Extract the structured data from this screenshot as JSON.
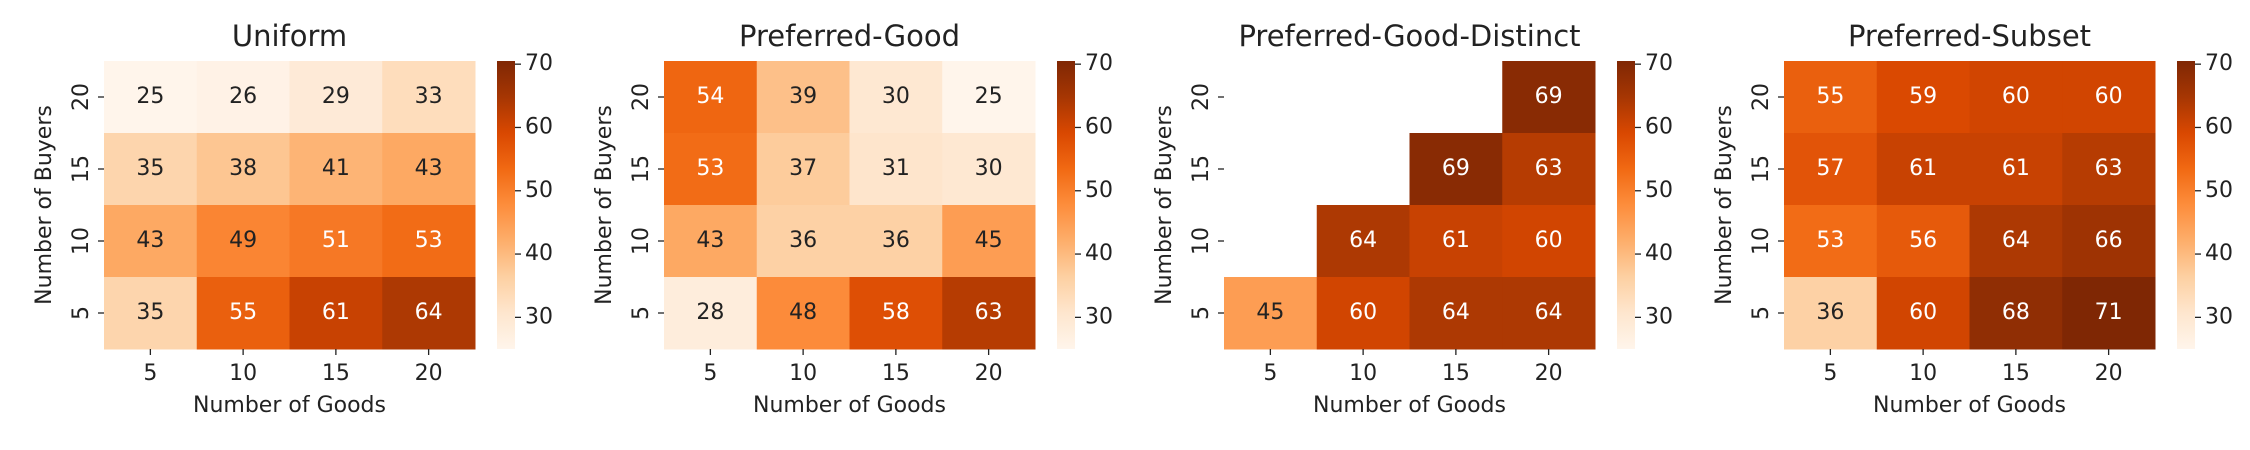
{
  "chart_data": [
    {
      "type": "heatmap",
      "title": "Uniform",
      "xlabel": "Number of Goods",
      "ylabel": "Number of Buyers",
      "x": [
        "5",
        "10",
        "15",
        "20"
      ],
      "y": [
        "20",
        "15",
        "10",
        "5"
      ],
      "values": [
        [
          25,
          26,
          29,
          33
        ],
        [
          35,
          38,
          41,
          43
        ],
        [
          43,
          49,
          51,
          53
        ],
        [
          35,
          55,
          61,
          64
        ]
      ],
      "clim": [
        25,
        70.5
      ],
      "cticks": [
        30,
        40,
        50,
        60,
        70
      ],
      "colormap": [
        "#fff5eb",
        "#fee6ce",
        "#fdd0a2",
        "#fdae6b",
        "#fd8d3c",
        "#f16913",
        "#d94801",
        "#a63603",
        "#7f2704"
      ]
    },
    {
      "type": "heatmap",
      "title": "Preferred-Good",
      "xlabel": "Number of Goods",
      "ylabel": "Number of Buyers",
      "x": [
        "5",
        "10",
        "15",
        "20"
      ],
      "y": [
        "20",
        "15",
        "10",
        "5"
      ],
      "values": [
        [
          54,
          39,
          30,
          25
        ],
        [
          53,
          37,
          31,
          30
        ],
        [
          43,
          36,
          36,
          45
        ],
        [
          28,
          48,
          58,
          63
        ]
      ],
      "clim": [
        25,
        70.5
      ],
      "cticks": [
        30,
        40,
        50,
        60,
        70
      ],
      "colormap": [
        "#fff5eb",
        "#fee6ce",
        "#fdd0a2",
        "#fdae6b",
        "#fd8d3c",
        "#f16913",
        "#d94801",
        "#a63603",
        "#7f2704"
      ]
    },
    {
      "type": "heatmap",
      "title": "Preferred-Good-Distinct",
      "xlabel": "Number of Goods",
      "ylabel": "Number of Buyers",
      "x": [
        "5",
        "10",
        "15",
        "20"
      ],
      "y": [
        "20",
        "15",
        "10",
        "5"
      ],
      "values": [
        [
          null,
          null,
          null,
          69
        ],
        [
          null,
          null,
          69,
          63
        ],
        [
          null,
          64,
          61,
          60
        ],
        [
          45,
          60,
          64,
          64
        ]
      ],
      "clim": [
        25,
        70.5
      ],
      "cticks": [
        30,
        40,
        50,
        60,
        70
      ],
      "colormap": [
        "#fff5eb",
        "#fee6ce",
        "#fdd0a2",
        "#fdae6b",
        "#fd8d3c",
        "#f16913",
        "#d94801",
        "#a63603",
        "#7f2704"
      ]
    },
    {
      "type": "heatmap",
      "title": "Preferred-Subset",
      "xlabel": "Number of Goods",
      "ylabel": "Number of Buyers",
      "x": [
        "5",
        "10",
        "15",
        "20"
      ],
      "y": [
        "20",
        "15",
        "10",
        "5"
      ],
      "values": [
        [
          55,
          59,
          60,
          60
        ],
        [
          57,
          61,
          61,
          63
        ],
        [
          53,
          56,
          64,
          66
        ],
        [
          36,
          60,
          68,
          71
        ]
      ],
      "clim": [
        25,
        70.5
      ],
      "cticks": [
        30,
        40,
        50,
        60,
        70
      ],
      "colormap": [
        "#fff5eb",
        "#fee6ce",
        "#fdd0a2",
        "#fdae6b",
        "#fd8d3c",
        "#f16913",
        "#d94801",
        "#a63603",
        "#7f2704"
      ]
    }
  ]
}
